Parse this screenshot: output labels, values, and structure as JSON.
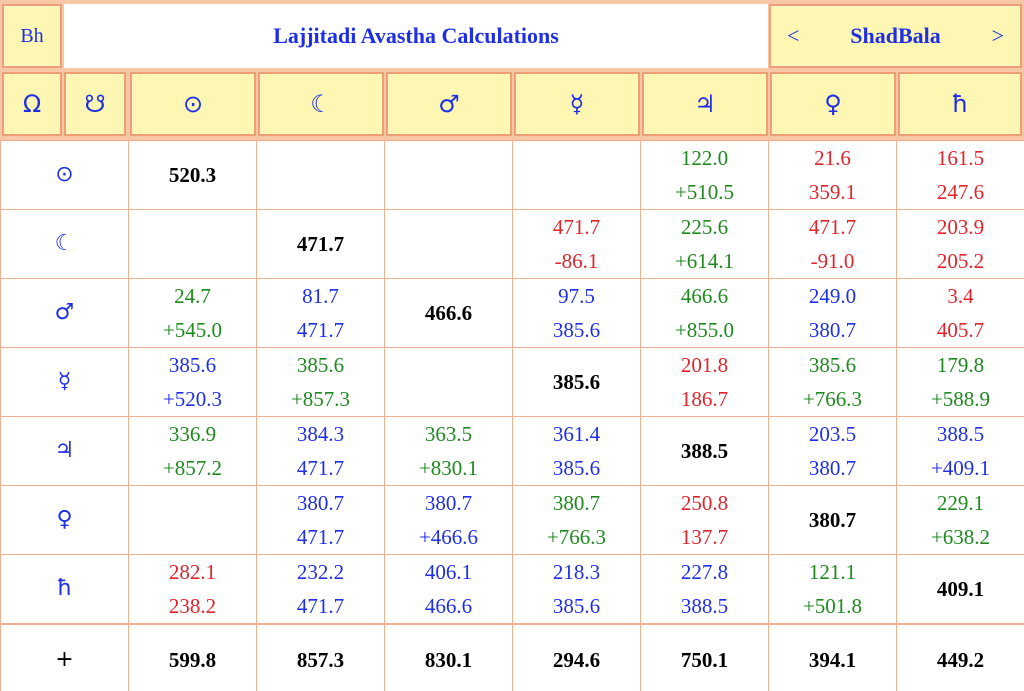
{
  "header": {
    "bh_label": "Bh",
    "title": "Lajjitadi Avastha Calculations",
    "nav": {
      "prev": "<",
      "label": "ShadBala",
      "next": ">"
    }
  },
  "columns": [
    "Ω",
    "☋",
    "⊙",
    "☾",
    "♂",
    "☿",
    "♃",
    "♀",
    "ħ"
  ],
  "colors": {
    "green": "#1e8a1e",
    "red": "#e0242c",
    "blue": "#1f2fe6",
    "tile": "#fdf7b3",
    "border": "#f0a070"
  },
  "rows": [
    {
      "label": "⊙",
      "cells": [
        {
          "diag": "520.3"
        },
        {},
        {},
        {},
        {
          "top": "122.0",
          "bot": "+510.5",
          "c": "g"
        },
        {
          "top": "21.6",
          "bot": "359.1",
          "c": "r"
        },
        {
          "top": "161.5",
          "bot": "247.6",
          "c": "r"
        }
      ]
    },
    {
      "label": "☾",
      "cells": [
        {},
        {
          "diag": "471.7"
        },
        {},
        {
          "top": "471.7",
          "bot": "-86.1",
          "c": "r"
        },
        {
          "top": "225.6",
          "bot": "+614.1",
          "c": "g"
        },
        {
          "top": "471.7",
          "bot": "-91.0",
          "c": "r"
        },
        {
          "top": "203.9",
          "bot": "205.2",
          "c": "r"
        }
      ]
    },
    {
      "label": "♂",
      "cells": [
        {
          "top": "24.7",
          "bot": "+545.0",
          "c": "g"
        },
        {
          "top": "81.7",
          "bot": "471.7",
          "c": "b"
        },
        {
          "diag": "466.6"
        },
        {
          "top": "97.5",
          "bot": "385.6",
          "c": "b"
        },
        {
          "top": "466.6",
          "bot": "+855.0",
          "c": "g"
        },
        {
          "top": "249.0",
          "bot": "380.7",
          "c": "b"
        },
        {
          "top": "3.4",
          "bot": "405.7",
          "c": "r"
        }
      ]
    },
    {
      "label": "☿",
      "cells": [
        {
          "top": "385.6",
          "bot": "+520.3",
          "c": "b"
        },
        {
          "top": "385.6",
          "bot": "+857.3",
          "c": "g"
        },
        {},
        {
          "diag": "385.6"
        },
        {
          "top": "201.8",
          "bot": "186.7",
          "c": "r"
        },
        {
          "top": "385.6",
          "bot": "+766.3",
          "c": "g"
        },
        {
          "top": "179.8",
          "bot": "+588.9",
          "c": "g"
        }
      ]
    },
    {
      "label": "♃",
      "cells": [
        {
          "top": "336.9",
          "bot": "+857.2",
          "c": "g"
        },
        {
          "top": "384.3",
          "bot": "471.7",
          "c": "b"
        },
        {
          "top": "363.5",
          "bot": "+830.1",
          "c": "g"
        },
        {
          "top": "361.4",
          "bot": "385.6",
          "c": "b"
        },
        {
          "diag": "388.5"
        },
        {
          "top": "203.5",
          "bot": "380.7",
          "c": "b"
        },
        {
          "top": "388.5",
          "bot": "+409.1",
          "c": "b"
        }
      ]
    },
    {
      "label": "♀",
      "cells": [
        {},
        {
          "top": "380.7",
          "bot": "471.7",
          "c": "b"
        },
        {
          "top": "380.7",
          "bot": "+466.6",
          "c": "b"
        },
        {
          "top": "380.7",
          "bot": "+766.3",
          "c": "g"
        },
        {
          "top": "250.8",
          "bot": "137.7",
          "c": "r"
        },
        {
          "diag": "380.7"
        },
        {
          "top": "229.1",
          "bot": "+638.2",
          "c": "g"
        }
      ]
    },
    {
      "label": "ħ",
      "cells": [
        {
          "top": "282.1",
          "bot": "238.2",
          "c": "r"
        },
        {
          "top": "232.2",
          "bot": "471.7",
          "c": "b"
        },
        {
          "top": "406.1",
          "bot": "466.6",
          "c": "b"
        },
        {
          "top": "218.3",
          "bot": "385.6",
          "c": "b"
        },
        {
          "top": "227.8",
          "bot": "388.5",
          "c": "b"
        },
        {
          "top": "121.1",
          "bot": "+501.8",
          "c": "g"
        },
        {
          "diag": "409.1"
        }
      ]
    }
  ],
  "totals": {
    "label": "+",
    "values": [
      "599.8",
      "857.3",
      "830.1",
      "294.6",
      "750.1",
      "394.1",
      "449.2"
    ]
  }
}
